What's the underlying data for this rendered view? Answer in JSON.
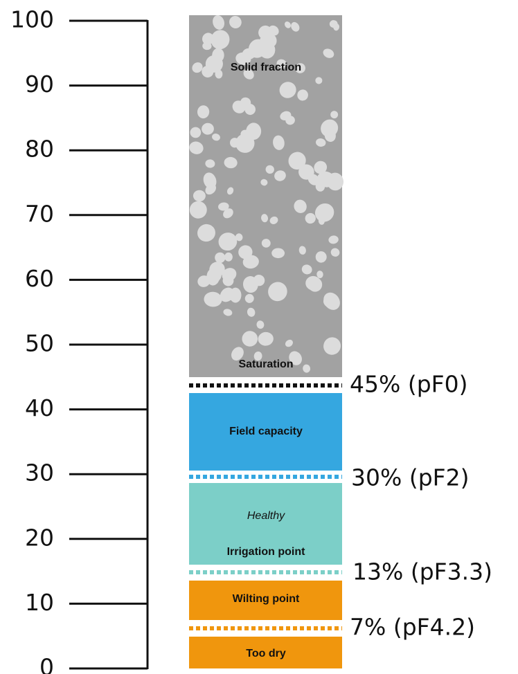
{
  "axis": {
    "ticks": [
      100,
      90,
      80,
      70,
      60,
      50,
      40,
      30,
      20,
      10,
      0
    ]
  },
  "zones": {
    "solid": {
      "title": "Solid fraction",
      "bottom": "Saturation"
    },
    "field": {
      "title": "Field capacity"
    },
    "healthy": {
      "note": "Healthy",
      "bottom": "Irrigation point"
    },
    "wilting": {
      "title": "Wilting point"
    },
    "dry": {
      "title": "Too dry"
    }
  },
  "thresholds": [
    "45% (pF0)",
    "30% (pF2)",
    "13% (pF3.3)",
    "7% (pF4.2)"
  ]
}
